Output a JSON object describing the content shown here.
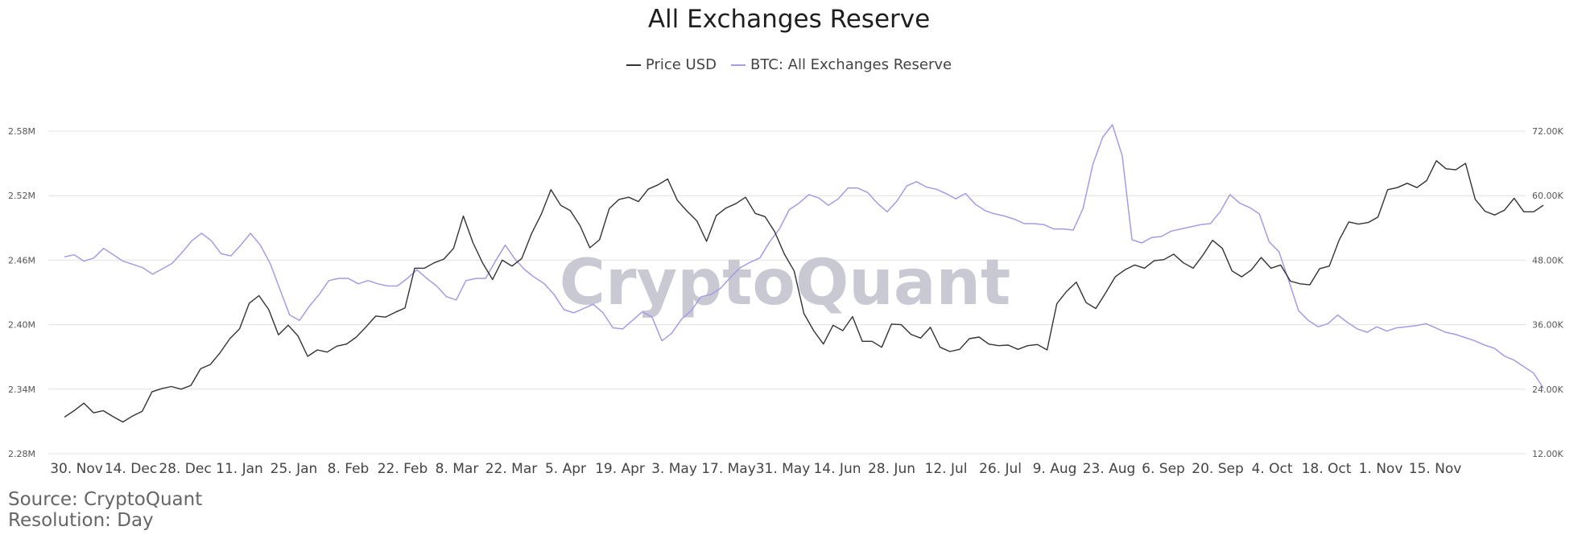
{
  "chart_data": {
    "type": "line",
    "title": "All Exchanges Reserve",
    "legend_position": "top-center",
    "grid": true,
    "watermark": "CryptoQuant",
    "x_tick_labels": [
      "30. Nov",
      "14. Dec",
      "28. Dec",
      "11. Jan",
      "25. Jan",
      "8. Feb",
      "22. Feb",
      "8. Mar",
      "22. Mar",
      "5. Apr",
      "19. Apr",
      "3. May",
      "17. May",
      "31. May",
      "14. Jun",
      "28. Jun",
      "12. Jul",
      "26. Jul",
      "9. Aug",
      "23. Aug",
      "6. Sep",
      "20. Sep",
      "4. Oct",
      "18. Oct",
      "1. Nov",
      "15. Nov"
    ],
    "y_left": {
      "ticks": [
        "2.28M",
        "2.34M",
        "2.40M",
        "2.46M",
        "2.52M",
        "2.58M"
      ],
      "values": [
        2.28,
        2.34,
        2.4,
        2.46,
        2.52,
        2.58
      ],
      "ylim": [
        2.28,
        2.58
      ]
    },
    "y_right": {
      "ticks": [
        "12.00K",
        "24.00K",
        "36.00K",
        "48.00K",
        "60.00K",
        "72.00K"
      ],
      "values": [
        12,
        24,
        36,
        48,
        60,
        72
      ],
      "ylim": [
        12,
        72
      ]
    },
    "series": [
      {
        "name": "Price USD",
        "axis": "right",
        "color": "#333333",
        "values": [
          18.8,
          20,
          21.4,
          19.6,
          20,
          18.9,
          17.9,
          19,
          19.9,
          23.5,
          24.1,
          24.5,
          24,
          24.7,
          27.8,
          28.6,
          30.8,
          33.4,
          35.2,
          40,
          41.4,
          38.8,
          34.1,
          35.9,
          33.9,
          30.1,
          31.3,
          30.9,
          32,
          32.4,
          33.7,
          35.6,
          37.6,
          37.4,
          38.3,
          39.1,
          46.5,
          46.5,
          47.5,
          48.2,
          50.2,
          56.2,
          51.2,
          47.4,
          44.4,
          48,
          46.9,
          48.3,
          52.9,
          56.5,
          61.1,
          58.2,
          57.2,
          54.4,
          50.3,
          51.8,
          57.6,
          59.3,
          59.7,
          58.9,
          61.2,
          62,
          63.1,
          59.1,
          57.1,
          55.3,
          51.5,
          56.3,
          57.7,
          58.5,
          59.7,
          56.7,
          56.1,
          53.3,
          49.1,
          46,
          38.1,
          34.9,
          32.4,
          35.9,
          34.9,
          37.5,
          32.9,
          32.9,
          31.8,
          36.1,
          36,
          34.2,
          33.5,
          35.5,
          31.8,
          31,
          31.4,
          33.4,
          33.7,
          32.4,
          32.1,
          32.2,
          31.4,
          32.1,
          32.3,
          31.3,
          39.9,
          42.2,
          43.9,
          40.1,
          39,
          41.9,
          44.9,
          46.2,
          47.1,
          46.5,
          47.9,
          48.1,
          49.1,
          47.5,
          46.5,
          48.9,
          51.7,
          50.2,
          46,
          44.9,
          46.2,
          48.5,
          46.5,
          47.1,
          44.1,
          43.6,
          43.4,
          46.4,
          46.9,
          51.7,
          55.1,
          54.7,
          55,
          56,
          61.1,
          61.5,
          62.3,
          61.5,
          62.8,
          66.5,
          65,
          64.8,
          66,
          59.3,
          57.1,
          56.4,
          57.3,
          59.5,
          57,
          57,
          58.2
        ]
      },
      {
        "name": "BTC: All Exchanges Reserve",
        "axis": "left",
        "color": "#a59ce3",
        "values": [
          2.463,
          2.465,
          2.459,
          2.462,
          2.471,
          2.465,
          2.459,
          2.456,
          2.453,
          2.447,
          2.452,
          2.457,
          2.467,
          2.478,
          2.485,
          2.478,
          2.466,
          2.464,
          2.474,
          2.485,
          2.474,
          2.457,
          2.433,
          2.409,
          2.404,
          2.417,
          2.428,
          2.441,
          2.443,
          2.443,
          2.438,
          2.441,
          2.438,
          2.436,
          2.436,
          2.443,
          2.451,
          2.443,
          2.436,
          2.426,
          2.423,
          2.441,
          2.443,
          2.443,
          2.459,
          2.474,
          2.461,
          2.451,
          2.444,
          2.438,
          2.428,
          2.414,
          2.411,
          2.415,
          2.419,
          2.411,
          2.397,
          2.396,
          2.404,
          2.412,
          2.407,
          2.385,
          2.392,
          2.405,
          2.413,
          2.426,
          2.428,
          2.434,
          2.444,
          2.453,
          2.458,
          2.462,
          2.477,
          2.489,
          2.507,
          2.513,
          2.521,
          2.518,
          2.511,
          2.517,
          2.527,
          2.527,
          2.523,
          2.513,
          2.505,
          2.515,
          2.529,
          2.533,
          2.528,
          2.526,
          2.522,
          2.517,
          2.522,
          2.512,
          2.506,
          2.503,
          2.501,
          2.498,
          2.494,
          2.494,
          2.493,
          2.489,
          2.489,
          2.488,
          2.508,
          2.549,
          2.574,
          2.586,
          2.557,
          2.479,
          2.476,
          2.481,
          2.482,
          2.487,
          2.489,
          2.491,
          2.493,
          2.494,
          2.505,
          2.521,
          2.513,
          2.509,
          2.503,
          2.477,
          2.468,
          2.441,
          2.413,
          2.404,
          2.398,
          2.401,
          2.409,
          2.402,
          2.396,
          2.393,
          2.398,
          2.394,
          2.397,
          2.398,
          2.399,
          2.401,
          2.397,
          2.393,
          2.391,
          2.388,
          2.385,
          2.381,
          2.378,
          2.371,
          2.367,
          2.361,
          2.355,
          2.341
        ]
      }
    ]
  },
  "footer": {
    "source": "Source: CryptoQuant",
    "resolution": "Resolution: Day"
  }
}
